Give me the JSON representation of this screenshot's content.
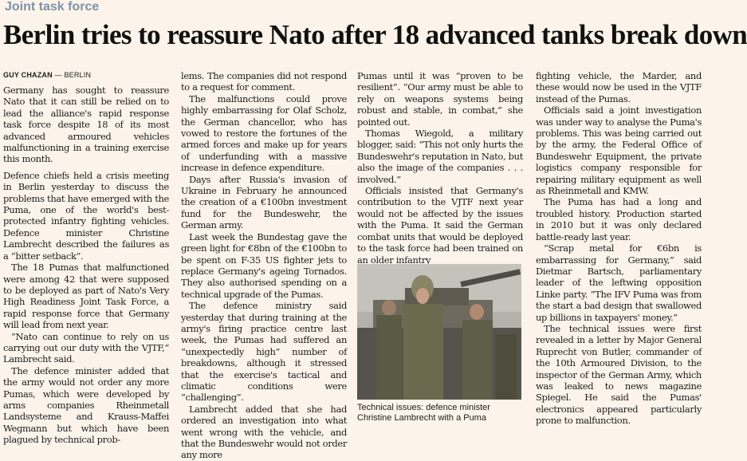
{
  "section": "Joint task force",
  "headline": "Berlin tries to reassure Nato after 18 advanced tanks break down",
  "byline": {
    "author": "GUY CHAZAN",
    "separator": " — ",
    "location": "BERLIN"
  },
  "col1": [
    "Germany has sought to reassure Nato that it can still be relied on to lead the alliance's rapid response task force despite 18 of its most advanced armoured vehicles malfunctioning in a training exercise this month.",
    "Defence chiefs held a crisis meeting in Berlin yesterday to discuss the problems that have emerged with the Puma, one of the world's best-protected infantry fighting vehicles. Defence minister Christine Lambrecht described the failures as a “bitter setback”.",
    "The 18 Pumas that malfunctioned were among 42 that were supposed to be deployed as part of Nato's Very High Readiness Joint Task Force, a rapid response force that Germany will lead from next year.",
    "“Nato can continue to rely on us carrying out our duty with the VJTF,” Lambrecht said.",
    "The defence minister added that the army would not order any more Pumas, which were developed by arms companies Rheinmetall Landsysteme and Krauss-Maffei Wegmann but which have been plagued by technical prob-"
  ],
  "col2": [
    "lems. The companies did not respond to a request for comment.",
    "The malfunctions could prove highly embarrassing for Olaf Scholz, the German chancellor, who has vowed to restore the fortunes of the armed forces and make up for years of underfunding with a massive increase in defence expenditure.",
    "Days after Russia's invasion of Ukraine in February he announced the creation of a €100bn investment fund for the Bundeswehr, the German army.",
    "Last week the Bundestag gave the green light for €8bn of the €100bn to be spent on F-35 US fighter jets to replace Germany's ageing Tornados. They also authorised spending on a technical upgrade of the Pumas.",
    "The defence ministry said yesterday that during training at the army's firing practice centre last week, the Pumas had suffered an “unexpectedly high” number of breakdowns, although it stressed that the exercise's tactical and climatic conditions were “challenging”.",
    "Lambrecht added that she had ordered an investigation into what went wrong with the vehicle, and that the Bundeswehr would not order any more"
  ],
  "col3": [
    "Pumas until it was “proven to be resilient”. “Our army must be able to rely on weapons systems being robust and stable, in combat,” she pointed out.",
    "Thomas Wiegold, a military blogger, said: “This not only hurts the Bundeswehr's reputation in Nato, but also the image of the companies . . . involved.”",
    "Officials insisted that Germany's contribution to the VJTF next year would not be affected by the issues with the Puma. It said the German combat units that would be deployed to the task force had been trained on an older infantry"
  ],
  "caption": "Technical issues: defence minister Christine Lambrecht with a Puma",
  "col4": [
    "fighting vehicle, the Marder, and these would now be used in the VJTF instead of the Pumas.",
    "Officials said a joint investigation was under way to analyse the Puma's problems. This was being carried out by the army, the Federal Office of Bundeswehr Equipment, the private logistics company responsible for repairing military equipment as well as Rheinmetall and KMW.",
    "The Puma has had a long and troubled history. Production started in 2010 but it was only declared battle-ready last year.",
    "“Scrap metal for €6bn is embarrassing for Germany,” said Dietmar Bartsch, parliamentary leader of the leftwing opposition Linke party. “The IFV Puma was from the start a bad design that swallowed up billions in taxpayers' money.”",
    "The technical issues were first revealed in a letter by Major General Ruprecht von Butler, commander of the 10th Armoured Division, to the inspector of the German Army, which was leaked to news magazine Spiegel. He said the Pumas' electronics appeared particularly prone to malfunction."
  ],
  "colors": {
    "background": "#fcf4ea",
    "section": "#7d92a8",
    "text": "#1c1c1c"
  }
}
